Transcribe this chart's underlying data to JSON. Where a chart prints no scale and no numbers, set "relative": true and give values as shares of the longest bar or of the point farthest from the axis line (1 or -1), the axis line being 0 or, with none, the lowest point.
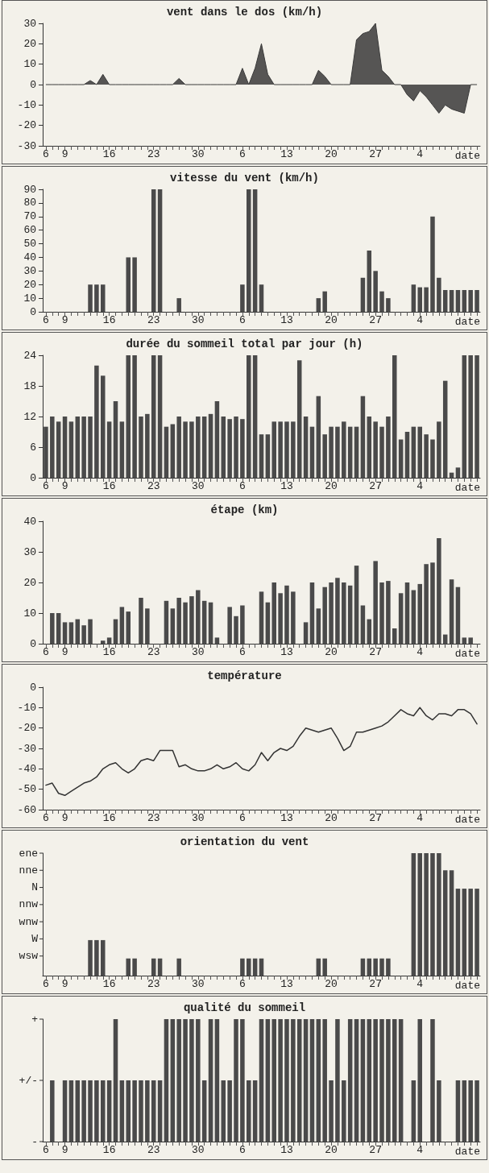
{
  "chart_data": [
    {
      "type": "area",
      "title": "vent dans le dos (km/h)",
      "xlabel": "date",
      "color": "#3a3a3a",
      "marker": "none",
      "categories": [
        "6",
        null,
        null,
        "9",
        null,
        null,
        null,
        null,
        null,
        null,
        "16",
        null,
        null,
        null,
        null,
        null,
        null,
        "23",
        null,
        null,
        null,
        null,
        null,
        null,
        "30",
        null,
        null,
        null,
        null,
        null,
        null,
        "6",
        null,
        null,
        null,
        null,
        null,
        null,
        "13",
        null,
        null,
        null,
        null,
        null,
        null,
        "20",
        null,
        null,
        null,
        null,
        null,
        null,
        "27",
        null,
        null,
        null,
        null,
        null,
        null,
        "4",
        null,
        null,
        null,
        null,
        null,
        null,
        null,
        null,
        null
      ],
      "values": [
        0,
        0,
        0,
        0,
        0,
        0,
        0,
        2,
        0,
        5,
        0,
        0,
        0,
        0,
        0,
        0,
        0,
        0,
        0,
        0,
        0,
        3,
        0,
        0,
        0,
        0,
        0,
        0,
        0,
        0,
        0,
        8,
        0,
        8,
        20,
        5,
        0,
        0,
        0,
        0,
        0,
        0,
        0,
        7,
        4,
        0,
        0,
        0,
        0,
        22,
        25,
        26,
        30,
        7,
        4,
        0,
        0,
        -5,
        -8,
        -3,
        -6,
        -10,
        -14,
        -10,
        -12,
        -13,
        -14,
        0,
        0
      ],
      "ylim": [
        -30,
        30
      ],
      "yticks": [
        -30,
        -20,
        -10,
        0,
        10,
        20,
        30
      ]
    },
    {
      "type": "bar",
      "title": "vitesse du vent (km/h)",
      "xlabel": "date",
      "color": "#4a4a4a",
      "categories": [
        "6",
        null,
        null,
        "9",
        null,
        null,
        null,
        null,
        null,
        null,
        "16",
        null,
        null,
        null,
        null,
        null,
        null,
        "23",
        null,
        null,
        null,
        null,
        null,
        null,
        "30",
        null,
        null,
        null,
        null,
        null,
        null,
        "6",
        null,
        null,
        null,
        null,
        null,
        null,
        "13",
        null,
        null,
        null,
        null,
        null,
        null,
        "20",
        null,
        null,
        null,
        null,
        null,
        null,
        "27",
        null,
        null,
        null,
        null,
        null,
        null,
        "4",
        null,
        null,
        null,
        null,
        null,
        null,
        null,
        null,
        null
      ],
      "values": [
        0,
        0,
        0,
        0,
        0,
        0,
        0,
        20,
        20,
        20,
        0,
        0,
        0,
        40,
        40,
        0,
        0,
        90,
        90,
        0,
        0,
        10,
        0,
        0,
        0,
        0,
        0,
        0,
        0,
        0,
        0,
        20,
        90,
        90,
        20,
        0,
        0,
        0,
        0,
        0,
        0,
        0,
        0,
        10,
        15,
        0,
        0,
        0,
        0,
        0,
        25,
        45,
        30,
        15,
        10,
        0,
        0,
        0,
        20,
        18,
        18,
        70,
        25,
        16,
        16,
        16,
        16,
        16,
        16
      ],
      "ylim": [
        0,
        90
      ],
      "yticks": [
        0,
        10,
        20,
        30,
        40,
        50,
        60,
        70,
        80,
        90
      ]
    },
    {
      "type": "bar",
      "title": "durée du sommeil total par jour (h)",
      "xlabel": "date",
      "color": "#4a4a4a",
      "categories": [
        "6",
        null,
        null,
        "9",
        null,
        null,
        null,
        null,
        null,
        null,
        "16",
        null,
        null,
        null,
        null,
        null,
        null,
        "23",
        null,
        null,
        null,
        null,
        null,
        null,
        "30",
        null,
        null,
        null,
        null,
        null,
        null,
        "6",
        null,
        null,
        null,
        null,
        null,
        null,
        "13",
        null,
        null,
        null,
        null,
        null,
        null,
        "20",
        null,
        null,
        null,
        null,
        null,
        null,
        "27",
        null,
        null,
        null,
        null,
        null,
        null,
        "4",
        null,
        null,
        null,
        null,
        null,
        null,
        null,
        null,
        null
      ],
      "values": [
        10,
        12,
        11,
        12,
        11,
        12,
        12,
        12,
        22,
        20,
        11,
        15,
        11,
        24,
        24,
        12,
        12.5,
        24,
        24,
        10,
        10.5,
        12,
        11,
        11,
        12,
        12,
        12.5,
        15,
        12,
        11.5,
        12,
        11.5,
        24,
        24,
        8.5,
        8.5,
        11,
        11,
        11,
        11,
        23,
        12,
        10,
        16,
        8.5,
        10,
        10,
        11,
        10,
        10,
        16,
        12,
        11,
        10,
        12,
        24,
        7.5,
        9,
        10,
        10,
        8.5,
        7.5,
        11,
        19,
        1,
        2,
        24,
        24,
        24
      ],
      "ylim": [
        0,
        24
      ],
      "yticks": [
        0,
        6,
        12,
        18,
        24
      ]
    },
    {
      "type": "bar",
      "title": "étape (km)",
      "xlabel": "date",
      "color": "#4a4a4a",
      "categories": [
        "6",
        null,
        null,
        "9",
        null,
        null,
        null,
        null,
        null,
        null,
        "16",
        null,
        null,
        null,
        null,
        null,
        null,
        "23",
        null,
        null,
        null,
        null,
        null,
        null,
        "30",
        null,
        null,
        null,
        null,
        null,
        null,
        "6",
        null,
        null,
        null,
        null,
        null,
        null,
        "13",
        null,
        null,
        null,
        null,
        null,
        null,
        "20",
        null,
        null,
        null,
        null,
        null,
        null,
        "27",
        null,
        null,
        null,
        null,
        null,
        null,
        "4",
        null,
        null,
        null,
        null,
        null,
        null,
        null,
        null,
        null
      ],
      "values": [
        0,
        10,
        10,
        7,
        7,
        8,
        6,
        8,
        0,
        1,
        2,
        8,
        12,
        10.5,
        0,
        15,
        11.5,
        0,
        0,
        14,
        11.5,
        15,
        13.5,
        15.5,
        17.5,
        14,
        13.5,
        2,
        0,
        12,
        9,
        12.5,
        0,
        0,
        17,
        13.5,
        20,
        16.5,
        19,
        17,
        0,
        7,
        20,
        11.5,
        18.5,
        20,
        21.5,
        20,
        19,
        25.5,
        12.5,
        8,
        27,
        20,
        20.5,
        5,
        16.5,
        20,
        17.5,
        19.5,
        26,
        26.5,
        34.5,
        3,
        21,
        18.5,
        2,
        2,
        0
      ],
      "ylim": [
        0,
        40
      ],
      "yticks": [
        0,
        10,
        20,
        30,
        40
      ]
    },
    {
      "type": "line",
      "title": "température",
      "xlabel": "date",
      "color": "#333333",
      "marker": "none",
      "line_style": "solid",
      "categories": [
        "6",
        null,
        null,
        "9",
        null,
        null,
        null,
        null,
        null,
        null,
        "16",
        null,
        null,
        null,
        null,
        null,
        null,
        "23",
        null,
        null,
        null,
        null,
        null,
        null,
        "30",
        null,
        null,
        null,
        null,
        null,
        null,
        "6",
        null,
        null,
        null,
        null,
        null,
        null,
        "13",
        null,
        null,
        null,
        null,
        null,
        null,
        "20",
        null,
        null,
        null,
        null,
        null,
        null,
        "27",
        null,
        null,
        null,
        null,
        null,
        null,
        "4",
        null,
        null,
        null,
        null,
        null,
        null,
        null,
        null,
        null
      ],
      "values": [
        -48,
        -47,
        -52,
        -53,
        -51,
        -49,
        -47,
        -46,
        -44,
        -40,
        -38,
        -37,
        -40,
        -42,
        -40,
        -36,
        -35,
        -36,
        -31,
        -31,
        -31,
        -39,
        -38,
        -40,
        -41,
        -41,
        -40,
        -38,
        -40,
        -39,
        -37,
        -40,
        -41,
        -38,
        -32,
        -36,
        -32,
        -30,
        -31,
        -29,
        -24,
        -20,
        -21,
        -22,
        -21,
        -20,
        -25,
        -31,
        -29,
        -22,
        -22,
        -21,
        -20,
        -19,
        -17,
        -14,
        -11,
        -13,
        -14,
        -10,
        -14,
        -16,
        -13,
        -13,
        -14,
        -11,
        -11,
        -13,
        -18
      ],
      "ylim": [
        -60,
        0
      ],
      "yticks": [
        -60,
        -50,
        -40,
        -30,
        -20,
        -10,
        0
      ]
    },
    {
      "type": "bar",
      "title": "orientation du vent",
      "xlabel": "date",
      "color": "#4a4a4a",
      "categories": [
        "6",
        null,
        null,
        "9",
        null,
        null,
        null,
        null,
        null,
        null,
        "16",
        null,
        null,
        null,
        null,
        null,
        null,
        "23",
        null,
        null,
        null,
        null,
        null,
        null,
        "30",
        null,
        null,
        null,
        null,
        null,
        null,
        "6",
        null,
        null,
        null,
        null,
        null,
        null,
        "13",
        null,
        null,
        null,
        null,
        null,
        null,
        "20",
        null,
        null,
        null,
        null,
        null,
        null,
        "27",
        null,
        null,
        null,
        null,
        null,
        null,
        "4",
        null,
        null,
        null,
        null,
        null,
        null,
        null,
        null,
        null
      ],
      "relative": true,
      "annotations": [
        "ene",
        "nne",
        "N",
        "nnw",
        "wnw",
        "W",
        "wsw"
      ],
      "values": [
        0,
        0,
        0,
        0,
        0,
        0,
        0,
        0.29,
        0.29,
        0.29,
        0,
        0,
        0,
        0.14,
        0.14,
        0,
        0,
        0.14,
        0.14,
        0,
        0,
        0.14,
        0,
        0,
        0,
        0,
        0,
        0,
        0,
        0,
        0,
        0.14,
        0.14,
        0.14,
        0.14,
        0,
        0,
        0,
        0,
        0,
        0,
        0,
        0,
        0.14,
        0.14,
        0,
        0,
        0,
        0,
        0,
        0.14,
        0.14,
        0.14,
        0.14,
        0.14,
        0,
        0,
        0,
        1,
        1,
        1,
        1,
        1,
        0.86,
        0.86,
        0.71,
        0.71,
        0.71,
        0.71
      ]
    },
    {
      "type": "bar",
      "title": "qualité du sommeil",
      "xlabel": "date",
      "color": "#4a4a4a",
      "categories": [
        "6",
        null,
        null,
        "9",
        null,
        null,
        null,
        null,
        null,
        null,
        "16",
        null,
        null,
        null,
        null,
        null,
        null,
        "23",
        null,
        null,
        null,
        null,
        null,
        null,
        "30",
        null,
        null,
        null,
        null,
        null,
        null,
        "6",
        null,
        null,
        null,
        null,
        null,
        null,
        "13",
        null,
        null,
        null,
        null,
        null,
        null,
        "20",
        null,
        null,
        null,
        null,
        null,
        null,
        "27",
        null,
        null,
        null,
        null,
        null,
        null,
        "4",
        null,
        null,
        null,
        null,
        null,
        null,
        null,
        null,
        null
      ],
      "relative": true,
      "annotations": [
        "+",
        "+/-",
        "-"
      ],
      "values": [
        0,
        0.5,
        0,
        0.5,
        0.5,
        0.5,
        0.5,
        0.5,
        0.5,
        0.5,
        0.5,
        1,
        0.5,
        0.5,
        0.5,
        0.5,
        0.5,
        0.5,
        0.5,
        1,
        1,
        1,
        1,
        1,
        1,
        0.5,
        1,
        1,
        0.5,
        0.5,
        1,
        1,
        0.5,
        0.5,
        1,
        1,
        1,
        1,
        1,
        1,
        1,
        1,
        1,
        1,
        1,
        0.5,
        1,
        0.5,
        1,
        1,
        1,
        1,
        1,
        1,
        1,
        1,
        1,
        0,
        0.5,
        1,
        0,
        1,
        0.5,
        0,
        0,
        0.5,
        0.5,
        0.5,
        0.5
      ]
    }
  ]
}
